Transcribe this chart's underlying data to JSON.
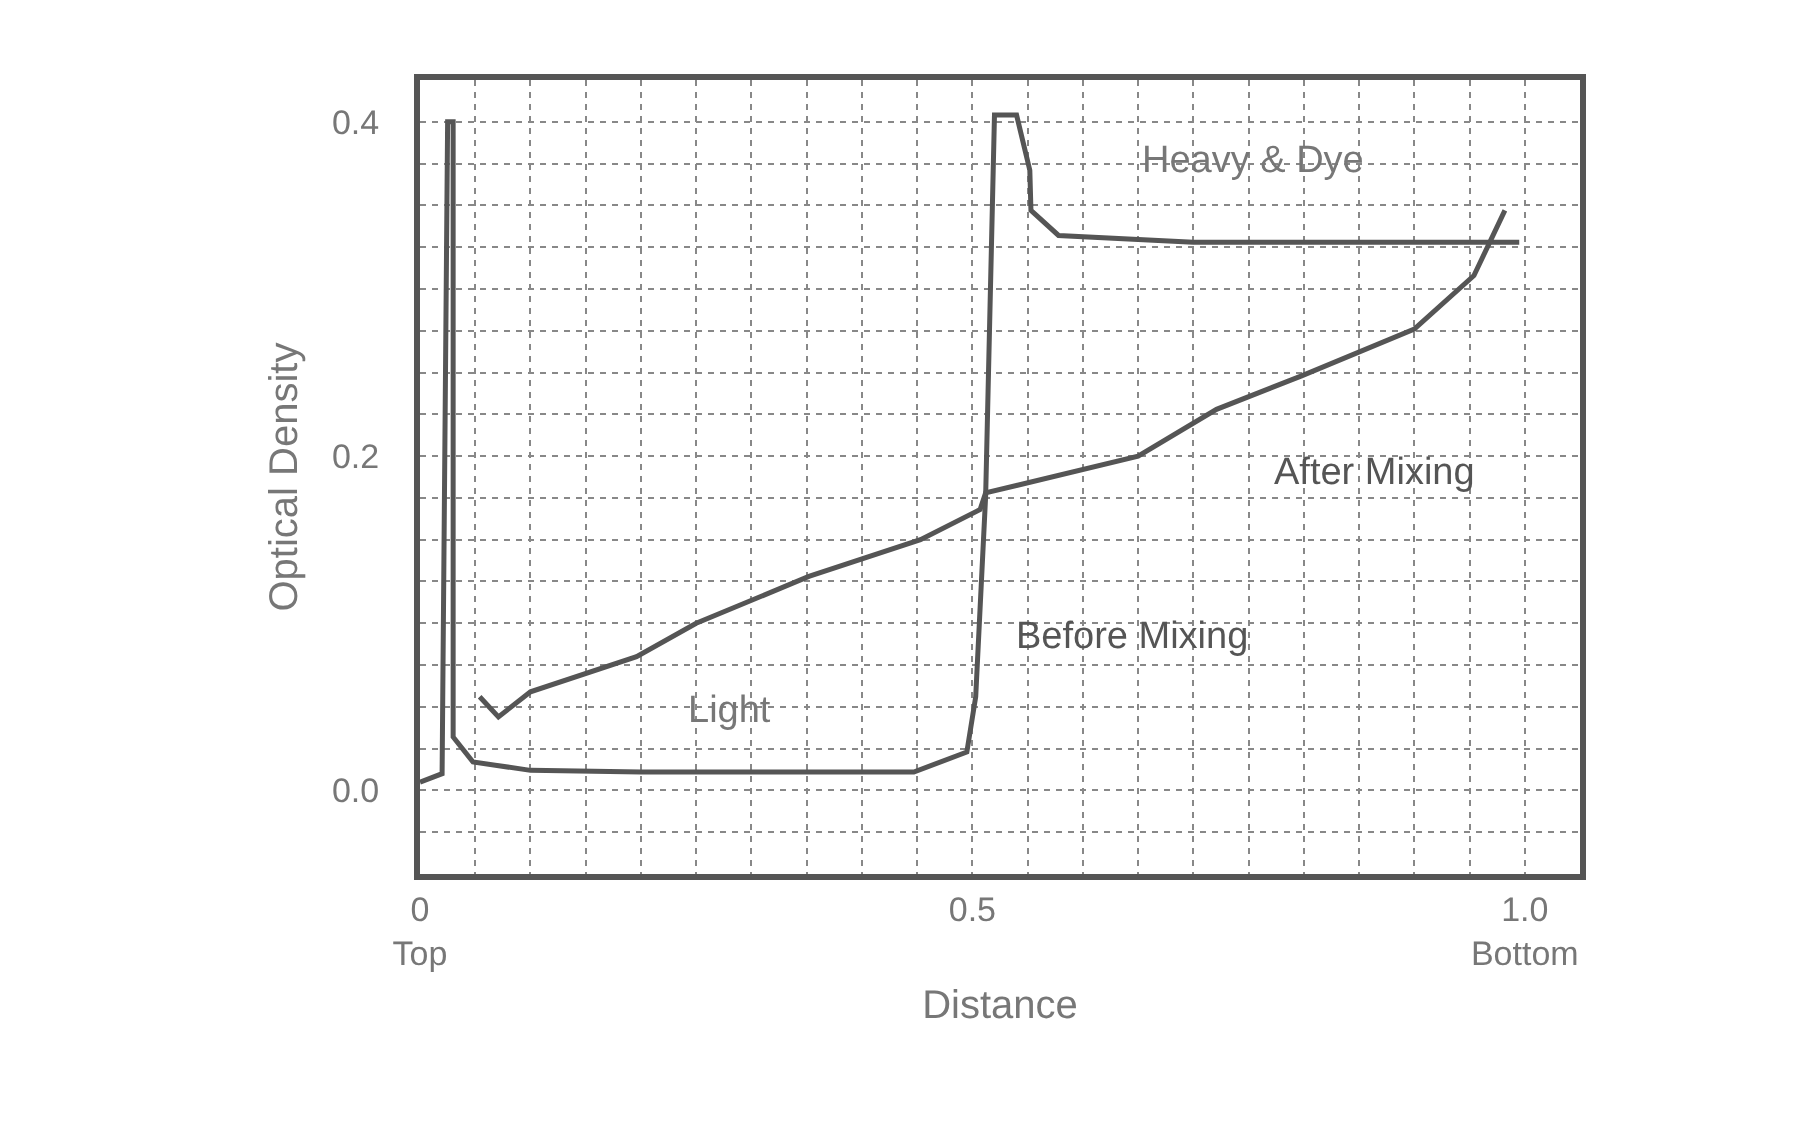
{
  "chart_data": {
    "type": "line",
    "xlabel": "Distance",
    "ylabel": "Optical Density",
    "grid": true,
    "marker": "none",
    "line_style": "solid",
    "legend": false,
    "xlim": [
      0,
      1.05
    ],
    "ylim": [
      -0.05,
      0.425
    ],
    "xticks": [
      {
        "value": 0,
        "label": "0\nTop"
      },
      {
        "value": 0.05,
        "label": null
      },
      {
        "value": 0.1,
        "label": null
      },
      {
        "value": 0.15,
        "label": null
      },
      {
        "value": 0.2,
        "label": null
      },
      {
        "value": 0.25,
        "label": null
      },
      {
        "value": 0.3,
        "label": null
      },
      {
        "value": 0.35,
        "label": null
      },
      {
        "value": 0.4,
        "label": null
      },
      {
        "value": 0.45,
        "label": null
      },
      {
        "value": 0.5,
        "label": "0.5\n "
      },
      {
        "value": 0.55,
        "label": null
      },
      {
        "value": 0.6,
        "label": null
      },
      {
        "value": 0.65,
        "label": null
      },
      {
        "value": 0.7,
        "label": null
      },
      {
        "value": 0.75,
        "label": null
      },
      {
        "value": 0.8,
        "label": null
      },
      {
        "value": 0.85,
        "label": null
      },
      {
        "value": 0.9,
        "label": null
      },
      {
        "value": 0.95,
        "label": null
      },
      {
        "value": 1,
        "label": "1.0\nBottom"
      }
    ],
    "yticks": [
      {
        "value": -0.025,
        "label": null
      },
      {
        "value": 0,
        "label": "0.0"
      },
      {
        "value": 0.025,
        "label": null
      },
      {
        "value": 0.05,
        "label": null
      },
      {
        "value": 0.075,
        "label": null
      },
      {
        "value": 0.1,
        "label": null
      },
      {
        "value": 0.125,
        "label": null
      },
      {
        "value": 0.15,
        "label": null
      },
      {
        "value": 0.175,
        "label": null
      },
      0.2,
      {
        "value": 0.225,
        "label": null
      },
      {
        "value": 0.25,
        "label": null
      },
      {
        "value": 0.275,
        "label": null
      },
      {
        "value": 0.3,
        "label": null
      },
      {
        "value": 0.325,
        "label": null
      },
      {
        "value": 0.35,
        "label": null
      },
      {
        "value": 0.375,
        "label": null
      },
      0.4
    ],
    "series": [
      {
        "name": "Before Mixing",
        "color": "#555555",
        "x": [
          0.0,
          0.02,
          0.025,
          0.03,
          0.03,
          0.048,
          0.1,
          0.2,
          0.3,
          0.4,
          0.447,
          0.495,
          0.503,
          0.512,
          0.52,
          0.54,
          0.552,
          0.553,
          0.578,
          0.7,
          0.85,
          0.995
        ],
        "values": [
          0.005,
          0.01,
          0.4,
          0.4,
          0.032,
          0.017,
          0.012,
          0.011,
          0.011,
          0.011,
          0.011,
          0.023,
          0.056,
          0.176,
          0.404,
          0.404,
          0.371,
          0.347,
          0.332,
          0.328,
          0.328,
          0.328
        ]
      },
      {
        "name": "After Mixing",
        "color": "#555555",
        "x": [
          0.054,
          0.071,
          0.1,
          0.196,
          0.25,
          0.352,
          0.453,
          0.507,
          0.512,
          0.65,
          0.721,
          0.798,
          0.9,
          0.954,
          0.982
        ],
        "values": [
          0.056,
          0.044,
          0.059,
          0.08,
          0.1,
          0.128,
          0.15,
          0.168,
          0.178,
          0.2,
          0.228,
          0.248,
          0.276,
          0.308,
          0.347
        ]
      }
    ],
    "annotations": [
      "Heavy & Dye",
      "Light"
    ]
  }
}
